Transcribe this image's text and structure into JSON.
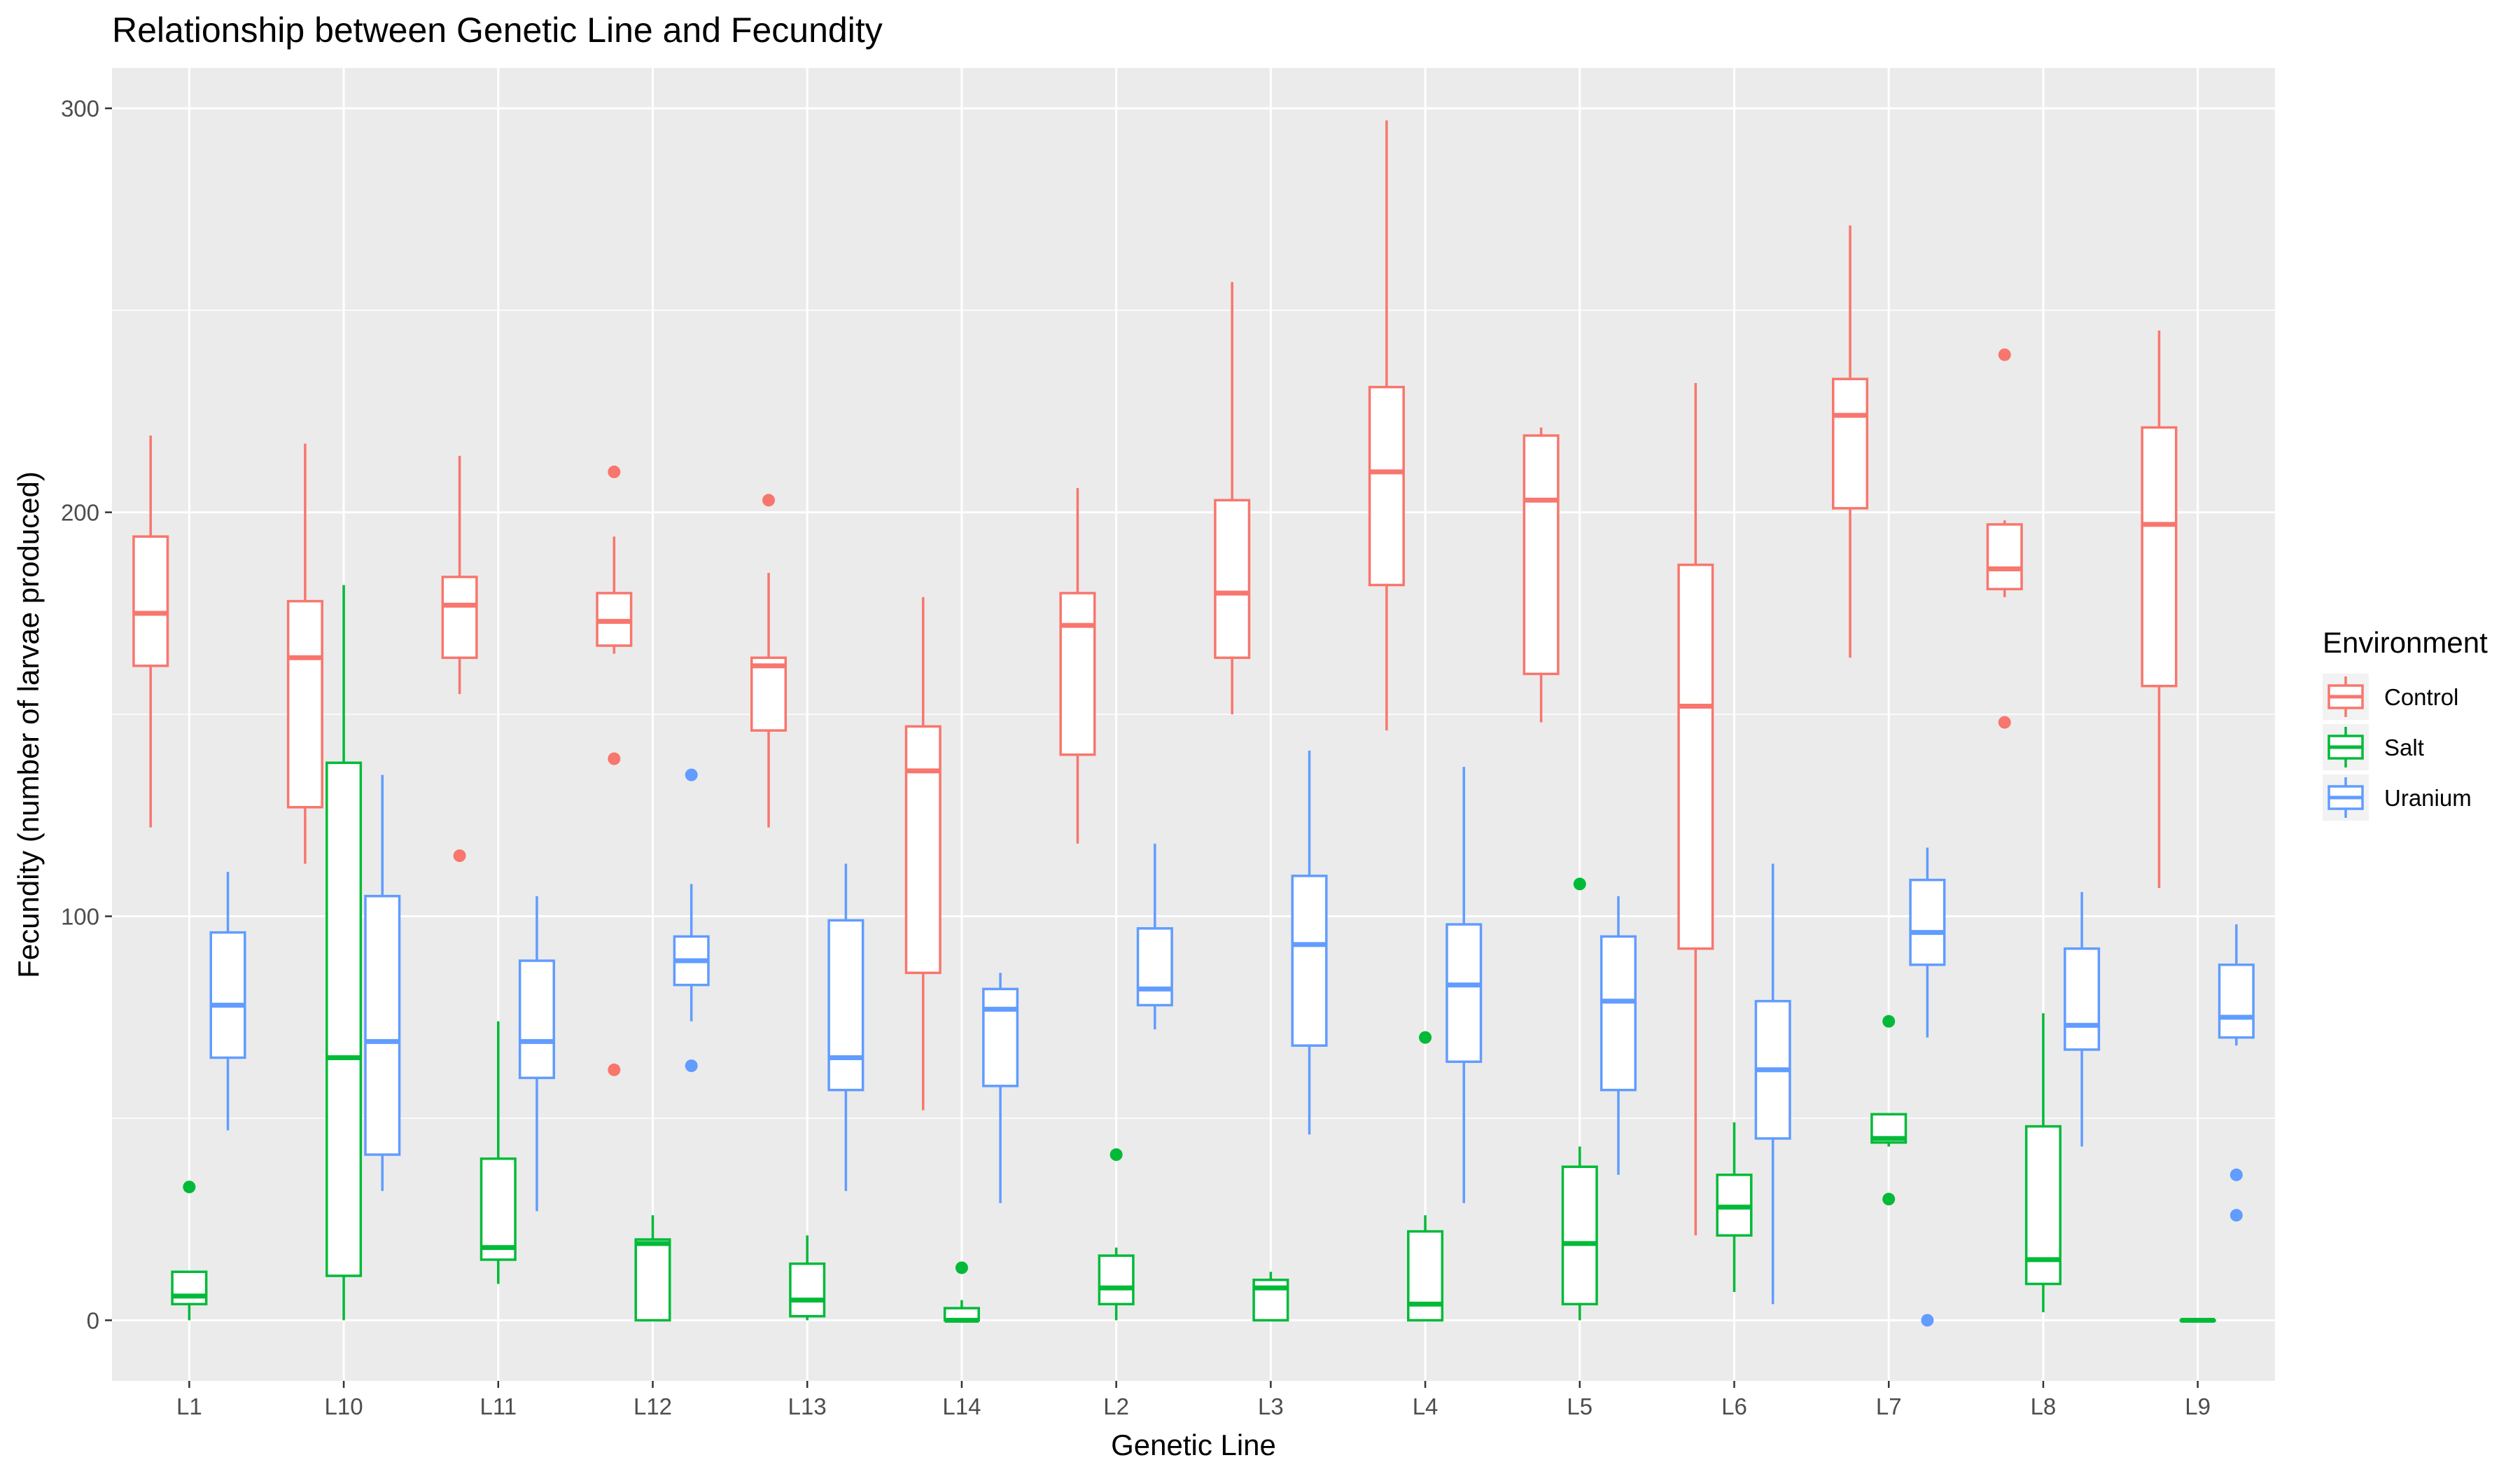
{
  "chart_data": {
    "type": "boxplot",
    "title": "Relationship between Genetic Line and Fecundity",
    "xlabel": "Genetic Line",
    "ylabel": "Fecundity (number of larvae produced)",
    "ylim": [
      -15,
      310
    ],
    "yticks": [
      0,
      100,
      200,
      300
    ],
    "grid": true,
    "legend": {
      "title": "Environment",
      "placement": "right"
    },
    "categories": [
      "L1",
      "L10",
      "L11",
      "L12",
      "L13",
      "L14",
      "L2",
      "L3",
      "L4",
      "L5",
      "L6",
      "L7",
      "L8",
      "L9"
    ],
    "series": [
      {
        "name": "Control",
        "color": "#F8766D",
        "boxes": [
          {
            "min": 122,
            "q1": 162,
            "median": 175,
            "q3": 194,
            "max": 219,
            "outliers": []
          },
          {
            "min": 113,
            "q1": 127,
            "median": 164,
            "q3": 178,
            "max": 217,
            "outliers": []
          },
          {
            "min": 155,
            "q1": 164,
            "median": 177,
            "q3": 184,
            "max": 214,
            "outliers": [
              115
            ]
          },
          {
            "min": 165,
            "q1": 167,
            "median": 173,
            "q3": 180,
            "max": 194,
            "outliers": [
              210,
              139,
              62
            ]
          },
          {
            "min": 122,
            "q1": 146,
            "median": 162,
            "q3": 164,
            "max": 185,
            "outliers": [
              203
            ]
          },
          {
            "min": 52,
            "q1": 86,
            "median": 136,
            "q3": 147,
            "max": 179,
            "outliers": []
          },
          {
            "min": 118,
            "q1": 140,
            "median": 172,
            "q3": 180,
            "max": 206,
            "outliers": []
          },
          {
            "min": 150,
            "q1": 164,
            "median": 180,
            "q3": 203,
            "max": 257,
            "outliers": []
          },
          {
            "min": 146,
            "q1": 182,
            "median": 210,
            "q3": 231,
            "max": 297,
            "outliers": []
          },
          {
            "min": 148,
            "q1": 160,
            "median": 203,
            "q3": 219,
            "max": 221,
            "outliers": []
          },
          {
            "min": 21,
            "q1": 92,
            "median": 152,
            "q3": 187,
            "max": 232,
            "outliers": []
          },
          {
            "min": 164,
            "q1": 201,
            "median": 224,
            "q3": 233,
            "max": 271,
            "outliers": []
          },
          {
            "min": 179,
            "q1": 181,
            "median": 186,
            "q3": 197,
            "max": 198,
            "outliers": [
              239,
              148
            ]
          },
          {
            "min": 107,
            "q1": 157,
            "median": 197,
            "q3": 221,
            "max": 245,
            "outliers": []
          }
        ]
      },
      {
        "name": "Salt",
        "color": "#00BA38",
        "boxes": [
          {
            "min": 0,
            "q1": 4,
            "median": 6,
            "q3": 12,
            "max": 12,
            "outliers": [
              33
            ]
          },
          {
            "min": 0,
            "q1": 11,
            "median": 65,
            "q3": 138,
            "max": 182,
            "outliers": []
          },
          {
            "min": 9,
            "q1": 15,
            "median": 18,
            "q3": 40,
            "max": 74,
            "outliers": []
          },
          {
            "min": 0,
            "q1": 0,
            "median": 19,
            "q3": 20,
            "max": 26,
            "outliers": []
          },
          {
            "min": 0,
            "q1": 1,
            "median": 5,
            "q3": 14,
            "max": 21,
            "outliers": []
          },
          {
            "min": 0,
            "q1": 0,
            "median": 0,
            "q3": 3,
            "max": 5,
            "outliers": [
              13
            ]
          },
          {
            "min": 0,
            "q1": 4,
            "median": 8,
            "q3": 16,
            "max": 18,
            "outliers": [
              41
            ]
          },
          {
            "min": 0,
            "q1": 0,
            "median": 8,
            "q3": 10,
            "max": 12,
            "outliers": []
          },
          {
            "min": 0,
            "q1": 0,
            "median": 4,
            "q3": 22,
            "max": 26,
            "outliers": [
              70
            ]
          },
          {
            "min": 0,
            "q1": 4,
            "median": 19,
            "q3": 38,
            "max": 43,
            "outliers": [
              108
            ]
          },
          {
            "min": 7,
            "q1": 21,
            "median": 28,
            "q3": 36,
            "max": 49,
            "outliers": []
          },
          {
            "min": 43,
            "q1": 44,
            "median": 45,
            "q3": 51,
            "max": 51,
            "outliers": [
              74,
              30
            ]
          },
          {
            "min": 2,
            "q1": 9,
            "median": 15,
            "q3": 48,
            "max": 76,
            "outliers": []
          },
          {
            "min": 0,
            "q1": 0,
            "median": 0,
            "q3": 0,
            "max": 0,
            "outliers": []
          }
        ]
      },
      {
        "name": "Uranium",
        "color": "#619CFF",
        "boxes": [
          {
            "min": 47,
            "q1": 65,
            "median": 78,
            "q3": 96,
            "max": 111,
            "outliers": []
          },
          {
            "min": 32,
            "q1": 41,
            "median": 69,
            "q3": 105,
            "max": 135,
            "outliers": []
          },
          {
            "min": 27,
            "q1": 60,
            "median": 69,
            "q3": 89,
            "max": 105,
            "outliers": []
          },
          {
            "min": 74,
            "q1": 83,
            "median": 89,
            "q3": 95,
            "max": 108,
            "outliers": [
              135,
              63
            ]
          },
          {
            "min": 32,
            "q1": 57,
            "median": 65,
            "q3": 99,
            "max": 113,
            "outliers": []
          },
          {
            "min": 29,
            "q1": 58,
            "median": 77,
            "q3": 82,
            "max": 86,
            "outliers": []
          },
          {
            "min": 72,
            "q1": 78,
            "median": 82,
            "q3": 97,
            "max": 118,
            "outliers": []
          },
          {
            "min": 46,
            "q1": 68,
            "median": 93,
            "q3": 110,
            "max": 141,
            "outliers": []
          },
          {
            "min": 29,
            "q1": 64,
            "median": 83,
            "q3": 98,
            "max": 137,
            "outliers": []
          },
          {
            "min": 36,
            "q1": 57,
            "median": 79,
            "q3": 95,
            "max": 105,
            "outliers": []
          },
          {
            "min": 4,
            "q1": 45,
            "median": 62,
            "q3": 79,
            "max": 113,
            "outliers": []
          },
          {
            "min": 70,
            "q1": 88,
            "median": 96,
            "q3": 109,
            "max": 117,
            "outliers": [
              0
            ]
          },
          {
            "min": 43,
            "q1": 67,
            "median": 73,
            "q3": 92,
            "max": 106,
            "outliers": []
          },
          {
            "min": 68,
            "q1": 70,
            "median": 75,
            "q3": 88,
            "max": 98,
            "outliers": [
              36,
              26
            ]
          }
        ]
      }
    ]
  }
}
